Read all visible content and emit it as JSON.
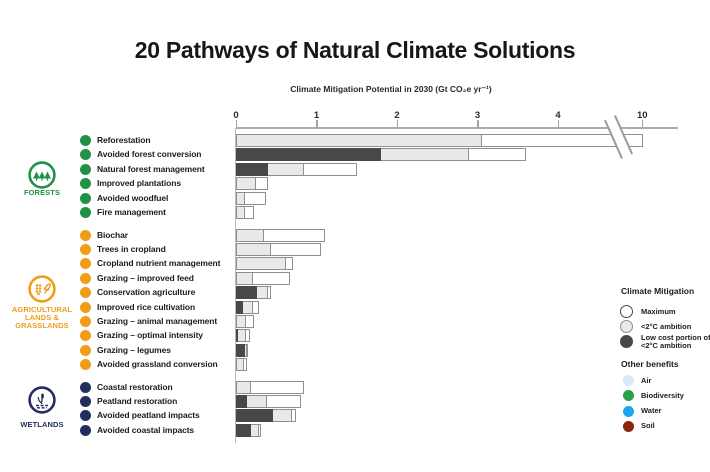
{
  "title": "20 Pathways of Natural Climate Solutions",
  "chart_data": {
    "type": "bar",
    "orientation": "horizontal",
    "title": "20 Pathways of Natural Climate Solutions",
    "axis": {
      "label": "Climate Mitigation Potential in 2030 (Gt CO₂e yr⁻¹)",
      "ticks": [
        0,
        1,
        2,
        3,
        4,
        10
      ],
      "range": [
        0,
        10.5
      ],
      "break_after": 4,
      "grid": false
    },
    "series": [
      "Maximum",
      "<2°C ambition",
      "Low cost portion of <2°C ambition"
    ],
    "groups": [
      {
        "name_lines": [
          "FORESTS"
        ],
        "color": "#1f9246",
        "icon": "forest-icon",
        "rows": [
          {
            "label": "Reforestation",
            "maximum": 10.1,
            "ambition": 3.05,
            "low_cost": 0
          },
          {
            "label": "Avoided forest conversion",
            "maximum": 3.6,
            "ambition": 2.9,
            "low_cost": 1.8
          },
          {
            "label": "Natural forest management",
            "maximum": 1.5,
            "ambition": 0.85,
            "low_cost": 0.4
          },
          {
            "label": "Improved plantations",
            "maximum": 0.4,
            "ambition": 0.25,
            "low_cost": 0
          },
          {
            "label": "Avoided woodfuel",
            "maximum": 0.37,
            "ambition": 0.11,
            "low_cost": 0
          },
          {
            "label": "Fire management",
            "maximum": 0.22,
            "ambition": 0.11,
            "low_cost": 0
          }
        ]
      },
      {
        "name_lines": [
          "AGRICULTURAL",
          "LANDS &",
          "GRASSLANDS"
        ],
        "color": "#f09d18",
        "icon": "agriculture-icon",
        "rows": [
          {
            "label": "Biochar",
            "maximum": 1.1,
            "ambition": 0.35,
            "low_cost": 0
          },
          {
            "label": "Trees in cropland",
            "maximum": 1.05,
            "ambition": 0.44,
            "low_cost": 0
          },
          {
            "label": "Cropland nutrient management",
            "maximum": 0.71,
            "ambition": 0.62,
            "low_cost": 0
          },
          {
            "label": "Grazing – improved feed",
            "maximum": 0.67,
            "ambition": 0.21,
            "low_cost": 0
          },
          {
            "label": "Conservation agriculture",
            "maximum": 0.43,
            "ambition": 0.4,
            "low_cost": 0.26
          },
          {
            "label": "Improved rice cultivation",
            "maximum": 0.28,
            "ambition": 0.21,
            "low_cost": 0.09
          },
          {
            "label": "Grazing – animal management",
            "maximum": 0.22,
            "ambition": 0.12,
            "low_cost": 0
          },
          {
            "label": "Grazing – optimal intensity",
            "maximum": 0.18,
            "ambition": 0.13,
            "low_cost": 0.03
          },
          {
            "label": "Grazing – legumes",
            "maximum": 0.15,
            "ambition": 0.14,
            "low_cost": 0.11
          },
          {
            "label": "Avoided grassland conversion",
            "maximum": 0.14,
            "ambition": 0.1,
            "low_cost": 0
          }
        ]
      },
      {
        "name_lines": [
          "WETLANDS"
        ],
        "color": "#232e60",
        "icon": "wetlands-icon",
        "rows": [
          {
            "label": "Coastal restoration",
            "maximum": 0.84,
            "ambition": 0.19,
            "low_cost": 0
          },
          {
            "label": "Peatland restoration",
            "maximum": 0.81,
            "ambition": 0.39,
            "low_cost": 0.14
          },
          {
            "label": "Avoided peatland impacts",
            "maximum": 0.75,
            "ambition": 0.69,
            "low_cost": 0.46
          },
          {
            "label": "Avoided coastal impacts",
            "maximum": 0.31,
            "ambition": 0.28,
            "low_cost": 0.19
          }
        ]
      }
    ]
  },
  "legend": {
    "mitigation_title": "Climate Mitigation",
    "mitigation_items": [
      {
        "label_lines": [
          "Maximum"
        ],
        "fill": "#ffffff",
        "border": "#4a4748"
      },
      {
        "label_lines": [
          "<2°C ambition"
        ],
        "fill": "#e9e9e9",
        "border": "#8f8f8f"
      },
      {
        "label_lines": [
          "Low cost portion of",
          "<2°C ambition"
        ],
        "fill": "#4a4748",
        "border": "#4a4748"
      }
    ],
    "benefits_title": "Other benefits",
    "benefit_items": [
      {
        "label": "Air",
        "color": "#d8eaf6"
      },
      {
        "label": "Biodiversity",
        "color": "#28a248"
      },
      {
        "label": "Water",
        "color": "#1ba7ee"
      },
      {
        "label": "Soil",
        "color": "#8c2412"
      }
    ]
  },
  "colors": {
    "bar_max_fill": "#ffffff",
    "bar_ambition_fill": "#e9e9e9",
    "bar_lowcost_fill": "#4a4748",
    "bar_border": "#8f8f8f",
    "axis": "#ababab",
    "forests": "#1f9246",
    "agriculture": "#f09d18",
    "wetlands": "#232e60"
  }
}
